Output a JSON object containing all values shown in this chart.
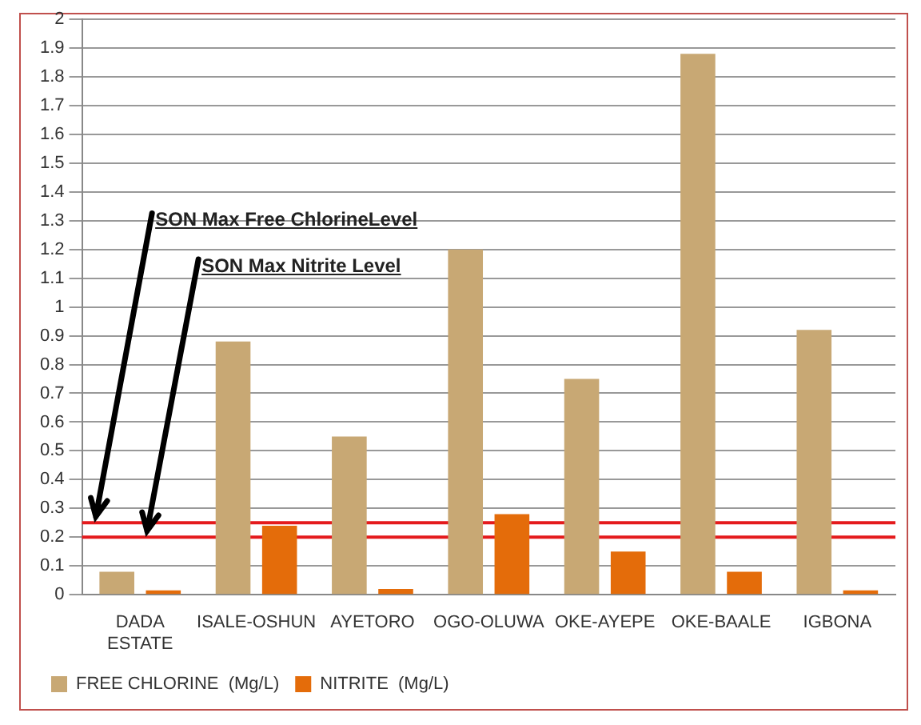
{
  "chart_data": {
    "type": "bar",
    "categories": [
      "DADA ESTATE",
      "ISALE-OSHUN",
      "AYETORO",
      "OGO-OLUWA",
      "OKE-AYEPE",
      "OKE-BAALE",
      "IGBONA"
    ],
    "series": [
      {
        "name": "FREE CHLORINE  (Mg/L)",
        "color": "#c8a874",
        "values": [
          0.08,
          0.88,
          0.55,
          1.2,
          0.75,
          1.88,
          0.92
        ]
      },
      {
        "name": "NITRITE  (Mg/L)",
        "color": "#e46c0a",
        "values": [
          0.015,
          0.24,
          0.02,
          0.28,
          0.15,
          0.08,
          0.015
        ]
      }
    ],
    "ylim": [
      0,
      2
    ],
    "yticks": [
      0,
      0.1,
      0.2,
      0.3,
      0.4,
      0.5,
      0.6,
      0.7,
      0.8,
      0.9,
      1,
      1.1,
      1.2,
      1.3,
      1.4,
      1.5,
      1.6,
      1.7,
      1.8,
      1.9,
      2
    ],
    "ref_lines": [
      {
        "axis": "y",
        "value": 0.25,
        "label": "SON Max Free ChlorineLevel",
        "color": "#e41a1c"
      },
      {
        "axis": "y",
        "value": 0.2,
        "label": "SON Max Nitrite Level",
        "color": "#e41a1c"
      }
    ],
    "grid": "y",
    "legend": "bottom left"
  }
}
